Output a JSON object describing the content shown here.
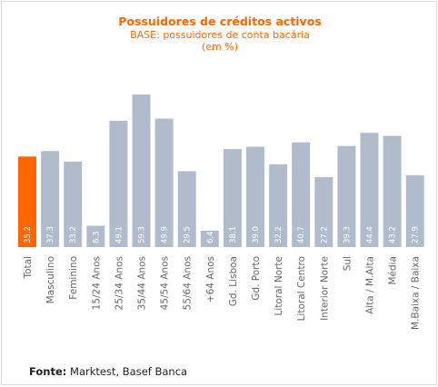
{
  "chart_data": {
    "type": "bar",
    "title": "Possuidores de créditos activos",
    "subtitle": "BASE: possuidores de conta bacária",
    "subtitle2": "(em %)",
    "categories": [
      "Total",
      "Masculino",
      "Feminino",
      "15/24 Anos",
      "25/34 Anos",
      "35/44 Anos",
      "45/54 Anos",
      "55/64 Anos",
      "+64 Anos",
      "Gd. Lisboa",
      "Gd. Porto",
      "Litoral Norte",
      "Litoral Centro",
      "Interior Norte",
      "Sul",
      "Alta / M.Alta",
      "Média",
      "M.Baixa / Baixa"
    ],
    "values": [
      35.2,
      37.3,
      33.2,
      8.3,
      49.1,
      59.3,
      49.9,
      29.5,
      6.4,
      38.1,
      39.0,
      32.2,
      40.7,
      27.2,
      39.3,
      44.4,
      43.2,
      27.9
    ],
    "value_labels": [
      "35.2",
      "37.3",
      "33.2",
      "8.3",
      "49.1",
      "59.3",
      "49.9",
      "29.5",
      "6.4",
      "38.1",
      "39.0",
      "32.2",
      "40.7",
      "27.2",
      "39.3",
      "44.4",
      "43.2",
      "27.9"
    ],
    "highlight_index": 0,
    "colors": {
      "highlight": "#ff6600",
      "bar": "#b0bccb",
      "title": "#ff6600"
    },
    "ylim": [
      0,
      60
    ],
    "grid": false,
    "legend": "none"
  },
  "footer": {
    "source_label": "Fonte:",
    "source_text": " Marktest, Basef Banca"
  }
}
